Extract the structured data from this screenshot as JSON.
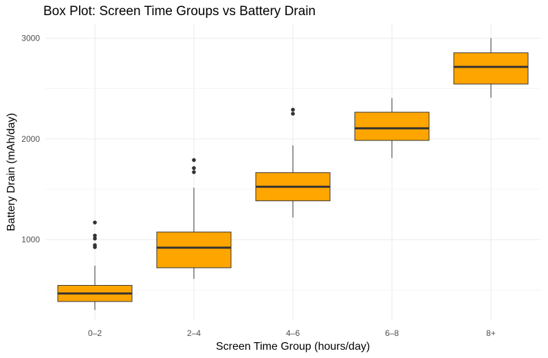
{
  "chart_data": {
    "type": "box",
    "title": "Box Plot: Screen Time Groups vs Battery Drain",
    "xlabel": "Screen Time Group (hours/day)",
    "ylabel": "Battery Drain (mAh/day)",
    "categories": [
      "0–2",
      "2–4",
      "4–6",
      "6–8",
      "8+"
    ],
    "yticks": [
      1000,
      2000,
      3000
    ],
    "ylim": [
      250,
      3080
    ],
    "grid": true,
    "boxes": [
      {
        "group": "0–2",
        "whisker_low": 300,
        "q1": 385,
        "median": 465,
        "q3": 545,
        "whisker_high": 740,
        "outliers": [
          925,
          945,
          1010,
          1040,
          1170
        ]
      },
      {
        "group": "2–4",
        "whisker_low": 610,
        "q1": 720,
        "median": 920,
        "q3": 1075,
        "whisker_high": 1515,
        "outliers": [
          1670,
          1710,
          1790
        ]
      },
      {
        "group": "4–6",
        "whisker_low": 1220,
        "q1": 1385,
        "median": 1525,
        "q3": 1665,
        "whisker_high": 1935,
        "outliers": [
          2250,
          2290
        ]
      },
      {
        "group": "6–8",
        "whisker_low": 1810,
        "q1": 1985,
        "median": 2105,
        "q3": 2265,
        "whisker_high": 2405,
        "outliers": []
      },
      {
        "group": "8+",
        "whisker_low": 2410,
        "q1": 2545,
        "median": 2715,
        "q3": 2855,
        "whisker_high": 3000,
        "outliers": []
      }
    ],
    "colors": {
      "box_fill": "#FFA500",
      "box_stroke": "#333333",
      "grid": "#EBEBEB",
      "point": "#333333"
    }
  }
}
